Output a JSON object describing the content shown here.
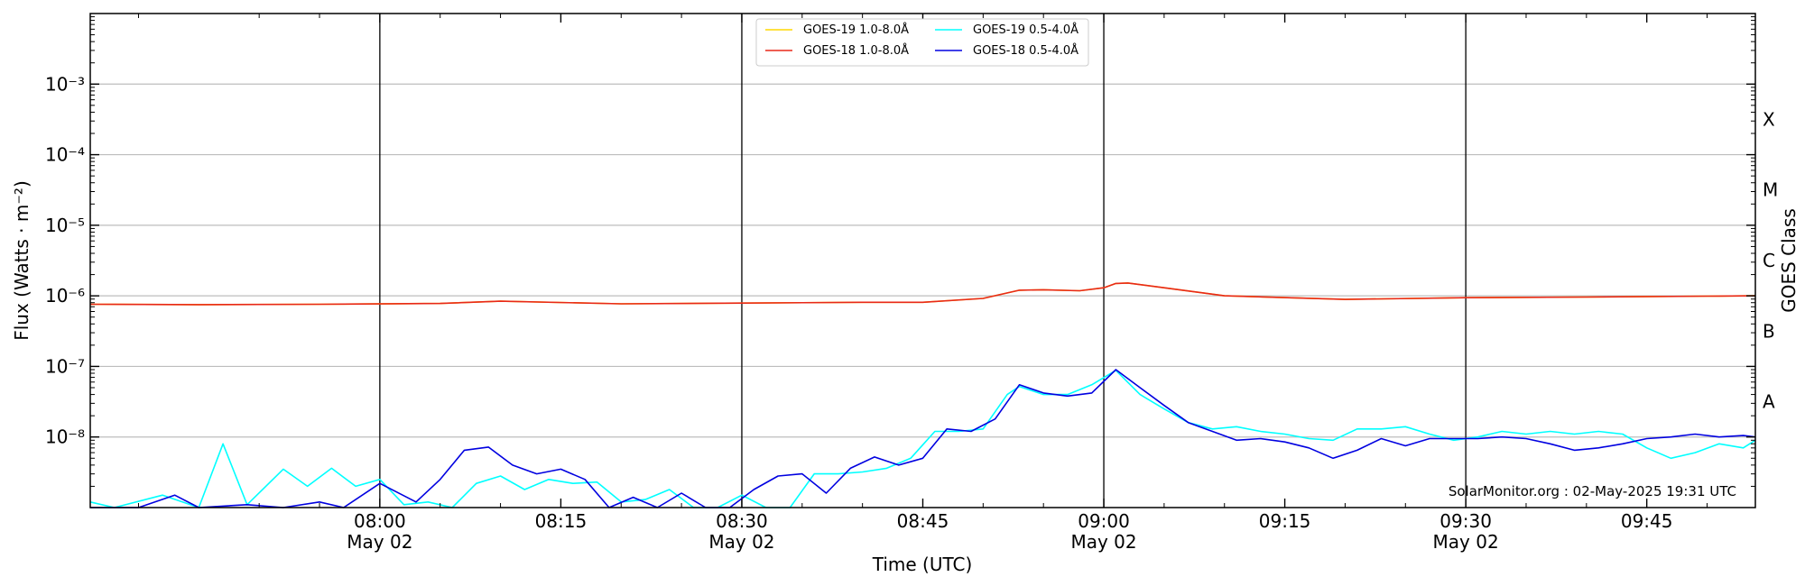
{
  "chart_data": {
    "type": "line",
    "xlabel": "Time (UTC)",
    "ylabel": "Flux (Watts · m⁻²)",
    "right_label": "GOES Class",
    "yscale": "log",
    "ylim": [
      1e-09,
      0.01
    ],
    "xlim": [
      "07:36",
      "09:54"
    ],
    "grid": "horizontal",
    "legend_position": "top-center",
    "watermark": "SolarMonitor.org : 02-May-2025 19:31 UTC",
    "x_ticks": [
      {
        "time": "08:00",
        "label": "08:00",
        "date": "May 02",
        "vline": true
      },
      {
        "time": "08:15",
        "label": "08:15",
        "date": "",
        "vline": false
      },
      {
        "time": "08:30",
        "label": "08:30",
        "date": "May 02",
        "vline": true
      },
      {
        "time": "08:45",
        "label": "08:45",
        "date": "",
        "vline": false
      },
      {
        "time": "09:00",
        "label": "09:00",
        "date": "May 02",
        "vline": true
      },
      {
        "time": "09:15",
        "label": "09:15",
        "date": "",
        "vline": false
      },
      {
        "time": "09:30",
        "label": "09:30",
        "date": "May 02",
        "vline": true
      },
      {
        "time": "09:45",
        "label": "09:45",
        "date": "",
        "vline": false
      }
    ],
    "y_ticks": [
      {
        "exp": -8,
        "label": "10⁻⁸"
      },
      {
        "exp": -7,
        "label": "10⁻⁷"
      },
      {
        "exp": -6,
        "label": "10⁻⁶"
      },
      {
        "exp": -5,
        "label": "10⁻⁵"
      },
      {
        "exp": -4,
        "label": "10⁻⁴"
      },
      {
        "exp": -3,
        "label": "10⁻³"
      }
    ],
    "classes": [
      {
        "label": "A",
        "exp": -7.5
      },
      {
        "label": "B",
        "exp": -6.5
      },
      {
        "label": "C",
        "exp": -5.5
      },
      {
        "label": "M",
        "exp": -4.5
      },
      {
        "label": "X",
        "exp": -3.5
      }
    ],
    "series": [
      {
        "name": "GOES-19 1.0-8.0Å",
        "color": "#ffd700",
        "x": [
          "07:36",
          "07:45",
          "07:55",
          "08:05",
          "08:10",
          "08:20",
          "08:30",
          "08:40",
          "08:45",
          "08:50",
          "08:53",
          "08:55",
          "08:58",
          "09:00",
          "09:01",
          "09:02",
          "09:05",
          "09:10",
          "09:20",
          "09:30",
          "09:40",
          "09:50",
          "09:54"
        ],
        "y": [
          7.6e-07,
          7.5e-07,
          7.6e-07,
          7.8e-07,
          8.4e-07,
          7.7e-07,
          7.9e-07,
          8.1e-07,
          8.1e-07,
          9.2e-07,
          1.2e-06,
          1.22e-06,
          1.18e-06,
          1.3e-06,
          1.5e-06,
          1.52e-06,
          1.3e-06,
          1e-06,
          8.9e-07,
          9.4e-07,
          9.6e-07,
          9.9e-07,
          1e-06
        ]
      },
      {
        "name": "GOES-18 1.0-8.0Å",
        "color": "#e8281a",
        "x": [
          "07:36",
          "07:45",
          "07:55",
          "08:05",
          "08:10",
          "08:20",
          "08:30",
          "08:40",
          "08:45",
          "08:50",
          "08:53",
          "08:55",
          "08:58",
          "09:00",
          "09:01",
          "09:02",
          "09:05",
          "09:10",
          "09:20",
          "09:30",
          "09:40",
          "09:50",
          "09:54"
        ],
        "y": [
          7.6e-07,
          7.5e-07,
          7.6e-07,
          7.8e-07,
          8.4e-07,
          7.7e-07,
          7.9e-07,
          8.1e-07,
          8.1e-07,
          9.2e-07,
          1.2e-06,
          1.22e-06,
          1.18e-06,
          1.3e-06,
          1.5e-06,
          1.52e-06,
          1.3e-06,
          1e-06,
          8.9e-07,
          9.4e-07,
          9.6e-07,
          9.9e-07,
          1e-06
        ]
      },
      {
        "name": "GOES-19 0.5-4.0Å",
        "color": "#00ffff",
        "x": [
          "07:36",
          "07:38",
          "07:42",
          "07:45",
          "07:47",
          "07:49",
          "07:52",
          "07:54",
          "07:56",
          "07:58",
          "08:00",
          "08:02",
          "08:04",
          "08:06",
          "08:08",
          "08:10",
          "08:12",
          "08:14",
          "08:16",
          "08:18",
          "08:20",
          "08:22",
          "08:24",
          "08:26",
          "08:28",
          "08:30",
          "08:32",
          "08:34",
          "08:36",
          "08:38",
          "08:40",
          "08:42",
          "08:44",
          "08:46",
          "08:48",
          "08:50",
          "08:52",
          "08:53",
          "08:55",
          "08:57",
          "08:59",
          "09:01",
          "09:03",
          "09:05",
          "09:07",
          "09:09",
          "09:11",
          "09:13",
          "09:15",
          "09:17",
          "09:19",
          "09:21",
          "09:23",
          "09:25",
          "09:27",
          "09:29",
          "09:31",
          "09:33",
          "09:35",
          "09:37",
          "09:39",
          "09:41",
          "09:43",
          "09:45",
          "09:47",
          "09:49",
          "09:51",
          "09:53",
          "09:54"
        ],
        "y": [
          1.2e-09,
          1e-09,
          1.5e-09,
          1e-09,
          8e-09,
          1.1e-09,
          3.5e-09,
          2e-09,
          3.6e-09,
          2e-09,
          2.5e-09,
          1.1e-09,
          1.2e-09,
          1e-09,
          2.2e-09,
          2.8e-09,
          1.8e-09,
          2.5e-09,
          2.2e-09,
          2.3e-09,
          1.2e-09,
          1.3e-09,
          1.8e-09,
          1e-09,
          1e-09,
          1.5e-09,
          1e-09,
          1e-09,
          3e-09,
          3e-09,
          3.2e-09,
          3.6e-09,
          5e-09,
          1.2e-08,
          1.2e-08,
          1.3e-08,
          4e-08,
          5.2e-08,
          4e-08,
          4e-08,
          5.5e-08,
          8.8e-08,
          4e-08,
          2.5e-08,
          1.6e-08,
          1.3e-08,
          1.4e-08,
          1.2e-08,
          1.1e-08,
          9.5e-09,
          9e-09,
          1.3e-08,
          1.3e-08,
          1.4e-08,
          1.1e-08,
          9e-09,
          1e-08,
          1.2e-08,
          1.1e-08,
          1.2e-08,
          1.1e-08,
          1.2e-08,
          1.1e-08,
          7e-09,
          5e-09,
          6e-09,
          8e-09,
          7e-09,
          9e-09
        ]
      },
      {
        "name": "GOES-18 0.5-4.0Å",
        "color": "#0000e0",
        "x": [
          "07:36",
          "07:40",
          "07:43",
          "07:45",
          "07:49",
          "07:52",
          "07:55",
          "07:57",
          "08:00",
          "08:03",
          "08:05",
          "08:07",
          "08:09",
          "08:11",
          "08:13",
          "08:15",
          "08:17",
          "08:19",
          "08:21",
          "08:23",
          "08:25",
          "08:27",
          "08:29",
          "08:31",
          "08:33",
          "08:35",
          "08:37",
          "08:39",
          "08:41",
          "08:43",
          "08:45",
          "08:47",
          "08:49",
          "08:51",
          "08:53",
          "08:55",
          "08:57",
          "08:59",
          "09:01",
          "09:03",
          "09:05",
          "09:07",
          "09:09",
          "09:11",
          "09:13",
          "09:15",
          "09:17",
          "09:19",
          "09:21",
          "09:23",
          "09:25",
          "09:27",
          "09:29",
          "09:31",
          "09:33",
          "09:35",
          "09:37",
          "09:39",
          "09:41",
          "09:43",
          "09:45",
          "09:47",
          "09:49",
          "09:51",
          "09:53",
          "09:54"
        ],
        "y": [
          1e-09,
          1e-09,
          1.5e-09,
          1e-09,
          1.1e-09,
          1e-09,
          1.2e-09,
          1e-09,
          2.2e-09,
          1.2e-09,
          2.5e-09,
          6.5e-09,
          7.2e-09,
          4e-09,
          3e-09,
          3.5e-09,
          2.5e-09,
          1e-09,
          1.4e-09,
          1e-09,
          1.6e-09,
          1e-09,
          1e-09,
          1.8e-09,
          2.8e-09,
          3e-09,
          1.6e-09,
          3.6e-09,
          5.2e-09,
          4e-09,
          5e-09,
          1.3e-08,
          1.2e-08,
          1.8e-08,
          5.5e-08,
          4.2e-08,
          3.8e-08,
          4.2e-08,
          9e-08,
          5e-08,
          2.8e-08,
          1.6e-08,
          1.2e-08,
          9e-09,
          9.5e-09,
          8.5e-09,
          7e-09,
          5e-09,
          6.5e-09,
          9.5e-09,
          7.5e-09,
          9.5e-09,
          9.5e-09,
          9.5e-09,
          1e-08,
          9.5e-09,
          8e-09,
          6.5e-09,
          7e-09,
          8e-09,
          9.5e-09,
          1e-08,
          1.1e-08,
          1e-08,
          1.05e-08,
          1e-08
        ]
      }
    ]
  }
}
